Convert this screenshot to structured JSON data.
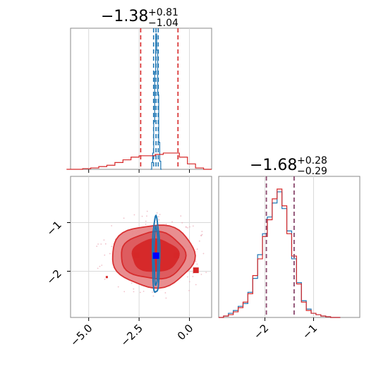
{
  "chart_data": [
    {
      "type": "histogram",
      "panel": "top-left",
      "title": {
        "value": "−1.38",
        "sup": "+0.81",
        "sub": "−1.04"
      },
      "xlim": [
        -5.9,
        1.1
      ],
      "grid": true,
      "series": [
        {
          "name": "",
          "color": "#1f77b4",
          "x": [
            -1.9,
            -1.85,
            -1.8,
            -1.75,
            -1.7,
            -1.65,
            -1.6,
            -1.55,
            -1.5,
            -1.45,
            -1.4
          ],
          "values": [
            0.0,
            0.05,
            0.12,
            0.35,
            0.72,
            1.0,
            0.88,
            0.55,
            0.2,
            0.06,
            0.0
          ],
          "quantile_lines": [
            -1.78,
            -1.55
          ],
          "median_line": -1.66
        },
        {
          "name": "",
          "color": "#d62728",
          "x": [
            -5.9,
            -5.5,
            -5.1,
            -4.7,
            -4.3,
            -3.9,
            -3.5,
            -3.1,
            -2.7,
            -2.3,
            -1.9,
            -1.5,
            -1.1,
            -0.7,
            -0.3,
            0.1,
            0.5,
            0.9
          ],
          "values": [
            0.0,
            0.0,
            0.005,
            0.01,
            0.02,
            0.03,
            0.05,
            0.07,
            0.09,
            0.1,
            0.1,
            0.11,
            0.12,
            0.12,
            0.09,
            0.04,
            0.01,
            0.0
          ],
          "quantile_lines": [
            -2.42,
            -0.57
          ]
        }
      ]
    },
    {
      "type": "contour",
      "panel": "bottom-left",
      "xlim": [
        -5.9,
        1.1
      ],
      "ylim": [
        -2.95,
        -0.05
      ],
      "xticks": [
        -5.0,
        -2.5,
        0.0
      ],
      "xtick_labels": [
        "−5.0",
        "−2.5",
        "0.0"
      ],
      "yticks": [
        -1,
        -2
      ],
      "ytick_labels": [
        "−1",
        "−2"
      ],
      "grid": true,
      "red_levels": [
        {
          "cx": -1.8,
          "cy": -1.68,
          "rx": 2.05,
          "ry": 0.64
        },
        {
          "cx": -1.8,
          "cy": -1.68,
          "rx": 1.6,
          "ry": 0.48
        },
        {
          "cx": -1.7,
          "cy": -1.68,
          "rx": 1.15,
          "ry": 0.33
        }
      ],
      "blue_levels": [
        {
          "cx": -1.66,
          "cy": -1.68,
          "rx": 0.18,
          "ry": 0.78
        },
        {
          "cx": -1.66,
          "cy": -1.68,
          "rx": 0.1,
          "ry": 0.6
        }
      ],
      "red_points": [
        [
          -2.62,
          -1.67
        ],
        [
          -0.65,
          -1.67
        ],
        [
          0.32,
          -1.98
        ],
        [
          -4.1,
          -2.12
        ]
      ],
      "blue_point": [
        -1.66,
        -1.68
      ],
      "colors": {
        "red": "#d62728",
        "red_fill": "#e8888b",
        "blue": "#1f77b4",
        "blue_point": "#0000ff"
      }
    },
    {
      "type": "histogram",
      "panel": "bottom-right",
      "title": {
        "value": "−1.68",
        "sup": "+0.28",
        "sub": "−0.29"
      },
      "xlim": [
        -2.95,
        -0.05
      ],
      "xticks": [
        -2,
        -1
      ],
      "xtick_labels": [
        "−2",
        "−1"
      ],
      "grid": true,
      "series": [
        {
          "name": "",
          "color": "#1f77b4",
          "x": [
            -2.9,
            -2.8,
            -2.7,
            -2.6,
            -2.5,
            -2.4,
            -2.3,
            -2.2,
            -2.1,
            -2.0,
            -1.9,
            -1.8,
            -1.7,
            -1.6,
            -1.5,
            -1.4,
            -1.3,
            -1.2,
            -1.1,
            -1.0,
            -0.9,
            -0.8,
            -0.7,
            -0.6,
            -0.5
          ],
          "values": [
            0.0,
            0.01,
            0.03,
            0.05,
            0.08,
            0.1,
            0.18,
            0.28,
            0.45,
            0.6,
            0.72,
            0.82,
            0.9,
            0.78,
            0.62,
            0.42,
            0.25,
            0.12,
            0.06,
            0.03,
            0.02,
            0.01,
            0.005,
            0.0,
            0.0
          ]
        },
        {
          "name": "",
          "color": "#d62728",
          "x": [
            -2.9,
            -2.8,
            -2.7,
            -2.6,
            -2.5,
            -2.4,
            -2.3,
            -2.2,
            -2.1,
            -2.0,
            -1.9,
            -1.8,
            -1.7,
            -1.6,
            -1.5,
            -1.4,
            -1.3,
            -1.2,
            -1.1,
            -1.0,
            -0.9,
            -0.8,
            -0.7,
            -0.6,
            -0.5
          ],
          "values": [
            0.0,
            0.01,
            0.02,
            0.04,
            0.07,
            0.11,
            0.17,
            0.3,
            0.42,
            0.58,
            0.7,
            0.85,
            0.92,
            0.8,
            0.6,
            0.44,
            0.24,
            0.11,
            0.05,
            0.03,
            0.02,
            0.01,
            0.005,
            0.0,
            0.0
          ]
        }
      ],
      "quantile_lines": [
        -1.97,
        -1.4
      ],
      "quantile_line_color": "#8b4a6e"
    }
  ]
}
